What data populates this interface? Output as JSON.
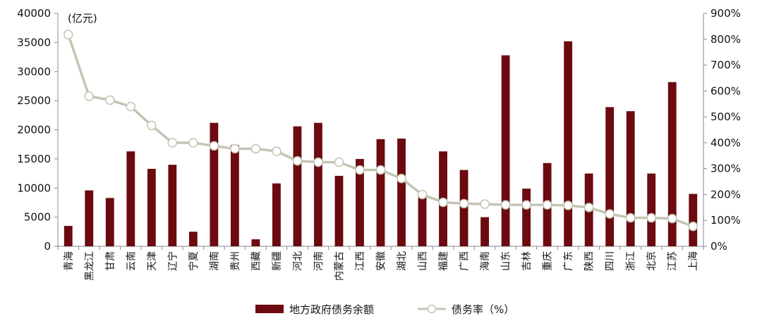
{
  "chart_data": {
    "type": "bar+line",
    "unit_label": "(亿元)",
    "categories": [
      "青海",
      "黑龙江",
      "甘肃",
      "云南",
      "天津",
      "辽宁",
      "宁夏",
      "湖南",
      "贵州",
      "西藏",
      "新疆",
      "河北",
      "河南",
      "内蒙古",
      "江西",
      "安徽",
      "湖北",
      "山西",
      "福建",
      "广西",
      "海南",
      "山东",
      "吉林",
      "重庆",
      "广东",
      "陕西",
      "四川",
      "浙江",
      "北京",
      "江苏",
      "上海"
    ],
    "series": [
      {
        "name": "地方政府债务余额",
        "type": "bar",
        "axis": "left",
        "color": "#6b0a0f",
        "values": [
          3500,
          9600,
          8300,
          16300,
          13300,
          14000,
          2500,
          21200,
          17400,
          1200,
          10800,
          20600,
          21200,
          12100,
          15000,
          18400,
          18500,
          8700,
          16300,
          13100,
          5000,
          32800,
          9900,
          14300,
          35200,
          12500,
          23900,
          23200,
          12500,
          28200,
          9000
        ]
      },
      {
        "name": "债务率（%）",
        "type": "line",
        "axis": "right",
        "color": "#c4c4b4",
        "values": [
          818,
          580,
          565,
          540,
          467,
          400,
          400,
          388,
          377,
          377,
          367,
          330,
          325,
          325,
          295,
          295,
          262,
          200,
          170,
          165,
          163,
          160,
          160,
          160,
          158,
          150,
          125,
          110,
          110,
          107,
          77
        ]
      }
    ],
    "y_left": {
      "min": 0,
      "max": 40000,
      "ticks": [
        0,
        5000,
        10000,
        15000,
        20000,
        25000,
        30000,
        35000,
        40000
      ]
    },
    "y_right": {
      "min": 0,
      "max": 900,
      "ticks": [
        "0%",
        "100%",
        "200%",
        "300%",
        "400%",
        "500%",
        "600%",
        "700%",
        "800%",
        "900%"
      ]
    },
    "legend_position": "bottom",
    "grid": false
  }
}
